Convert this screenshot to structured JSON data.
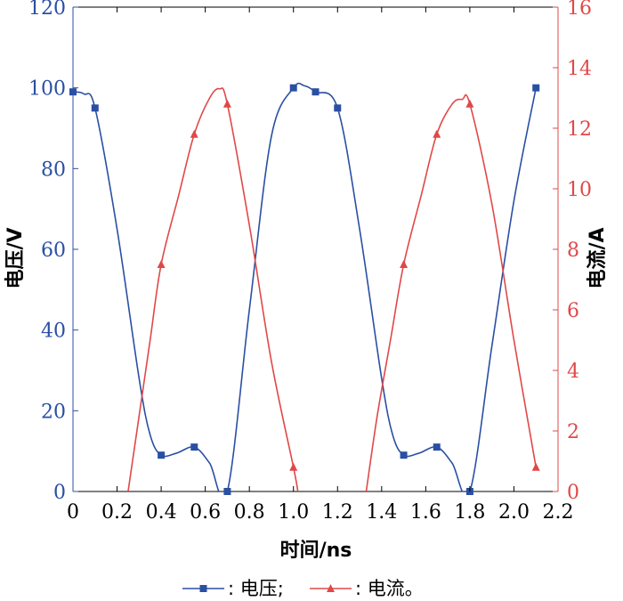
{
  "chart_data": {
    "type": "line",
    "xlabel": "时间/ns",
    "ylabel_left": "电压/V",
    "ylabel_right": "电流/A",
    "xlim": [
      0,
      2.2
    ],
    "xticks": [
      "0",
      "0.2",
      "0.4",
      "0.6",
      "0.8",
      "1.0",
      "1.2",
      "1.4",
      "1.6",
      "1.8",
      "2.0",
      "2.2"
    ],
    "ylim_left": [
      0,
      120
    ],
    "yticks_left": [
      "0",
      "20",
      "40",
      "60",
      "80",
      "100",
      "120"
    ],
    "ylim_right": [
      0,
      16
    ],
    "yticks_right": [
      "0",
      "2",
      "4",
      "6",
      "8",
      "10",
      "12",
      "14",
      "16"
    ],
    "legend_position": "bottom-center",
    "series": [
      {
        "name": "电压",
        "axis": "left",
        "color": "#2a4fa3",
        "marker": "square",
        "points": [
          [
            0,
            99
          ],
          [
            0.1,
            95
          ],
          [
            0.4,
            9
          ],
          [
            0.55,
            11
          ],
          [
            0.7,
            0
          ],
          [
            1.0,
            100
          ],
          [
            1.1,
            99
          ],
          [
            1.2,
            95
          ],
          [
            1.5,
            9
          ],
          [
            1.65,
            11
          ],
          [
            1.8,
            0
          ],
          [
            2.1,
            100
          ]
        ],
        "curve": [
          [
            0,
            99
          ],
          [
            0.05,
            98.5
          ],
          [
            0.1,
            95
          ],
          [
            0.2,
            65
          ],
          [
            0.3,
            28
          ],
          [
            0.35,
            14
          ],
          [
            0.4,
            9
          ],
          [
            0.47,
            9.5
          ],
          [
            0.55,
            11
          ],
          [
            0.62,
            7
          ],
          [
            0.7,
            0
          ],
          [
            0.8,
            45
          ],
          [
            0.9,
            88
          ],
          [
            1.0,
            100
          ],
          [
            1.05,
            100.5
          ],
          [
            1.1,
            99
          ],
          [
            1.2,
            95
          ],
          [
            1.3,
            65
          ],
          [
            1.4,
            28
          ],
          [
            1.45,
            14
          ],
          [
            1.5,
            9
          ],
          [
            1.57,
            9.5
          ],
          [
            1.65,
            11
          ],
          [
            1.72,
            7
          ],
          [
            1.8,
            0
          ],
          [
            1.9,
            36
          ],
          [
            2.0,
            72
          ],
          [
            2.1,
            100
          ]
        ]
      },
      {
        "name": "电流",
        "axis": "right",
        "color": "#e04848",
        "marker": "triangle",
        "points": [
          [
            0.4,
            7.5
          ],
          [
            0.55,
            11.8
          ],
          [
            0.7,
            12.8
          ],
          [
            1.0,
            0.8
          ],
          [
            1.5,
            7.5
          ],
          [
            1.65,
            11.8
          ],
          [
            1.8,
            12.8
          ],
          [
            2.1,
            0.8
          ]
        ],
        "curve": [
          [
            0.25,
            0
          ],
          [
            0.3,
            2.5
          ],
          [
            0.35,
            5.0
          ],
          [
            0.4,
            7.5
          ],
          [
            0.48,
            9.8
          ],
          [
            0.55,
            11.8
          ],
          [
            0.62,
            13.0
          ],
          [
            0.665,
            13.3
          ],
          [
            0.7,
            12.8
          ],
          [
            0.8,
            8.8
          ],
          [
            0.9,
            4.3
          ],
          [
            1.0,
            0.8
          ],
          [
            1.02,
            0
          ],
          [
            1.33,
            0
          ],
          [
            1.38,
            2.5
          ],
          [
            1.44,
            5.0
          ],
          [
            1.5,
            7.5
          ],
          [
            1.58,
            9.8
          ],
          [
            1.65,
            11.8
          ],
          [
            1.72,
            12.8
          ],
          [
            1.765,
            12.95
          ],
          [
            1.8,
            12.8
          ],
          [
            1.9,
            9.5
          ],
          [
            2.0,
            5.0
          ],
          [
            2.1,
            0.8
          ]
        ]
      }
    ]
  },
  "legend": {
    "voltage_label": ": 电压;",
    "current_label": ": 电流。"
  }
}
